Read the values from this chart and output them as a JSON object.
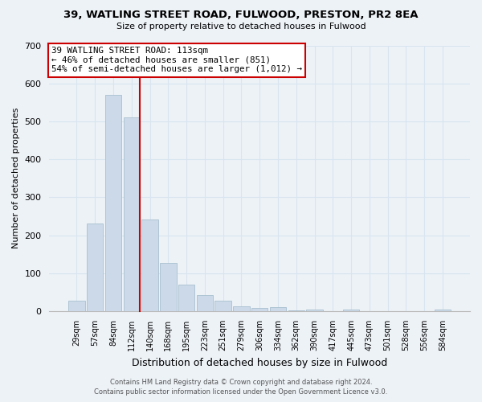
{
  "title": "39, WATLING STREET ROAD, FULWOOD, PRESTON, PR2 8EA",
  "subtitle": "Size of property relative to detached houses in Fulwood",
  "xlabel": "Distribution of detached houses by size in Fulwood",
  "ylabel": "Number of detached properties",
  "bar_labels": [
    "29sqm",
    "57sqm",
    "84sqm",
    "112sqm",
    "140sqm",
    "168sqm",
    "195sqm",
    "223sqm",
    "251sqm",
    "279sqm",
    "306sqm",
    "334sqm",
    "362sqm",
    "390sqm",
    "417sqm",
    "445sqm",
    "473sqm",
    "501sqm",
    "528sqm",
    "556sqm",
    "584sqm"
  ],
  "bar_values": [
    28,
    232,
    570,
    510,
    242,
    127,
    70,
    42,
    27,
    13,
    8,
    10,
    3,
    4,
    1,
    5,
    0,
    0,
    0,
    0,
    5
  ],
  "bar_color": "#ccd9e8",
  "bar_edge_color": "#a8bfcf",
  "vline_color": "#cc0000",
  "ylim": [
    0,
    700
  ],
  "yticks": [
    0,
    100,
    200,
    300,
    400,
    500,
    600,
    700
  ],
  "annotation_line1": "39 WATLING STREET ROAD: 113sqm",
  "annotation_line2": "← 46% of detached houses are smaller (851)",
  "annotation_line3": "54% of semi-detached houses are larger (1,012) →",
  "annotation_box_color": "#ffffff",
  "annotation_box_edge": "#cc0000",
  "footer_line1": "Contains HM Land Registry data © Crown copyright and database right 2024.",
  "footer_line2": "Contains public sector information licensed under the Open Government Licence v3.0.",
  "background_color": "#edf2f7",
  "grid_color": "#d8e4ef"
}
